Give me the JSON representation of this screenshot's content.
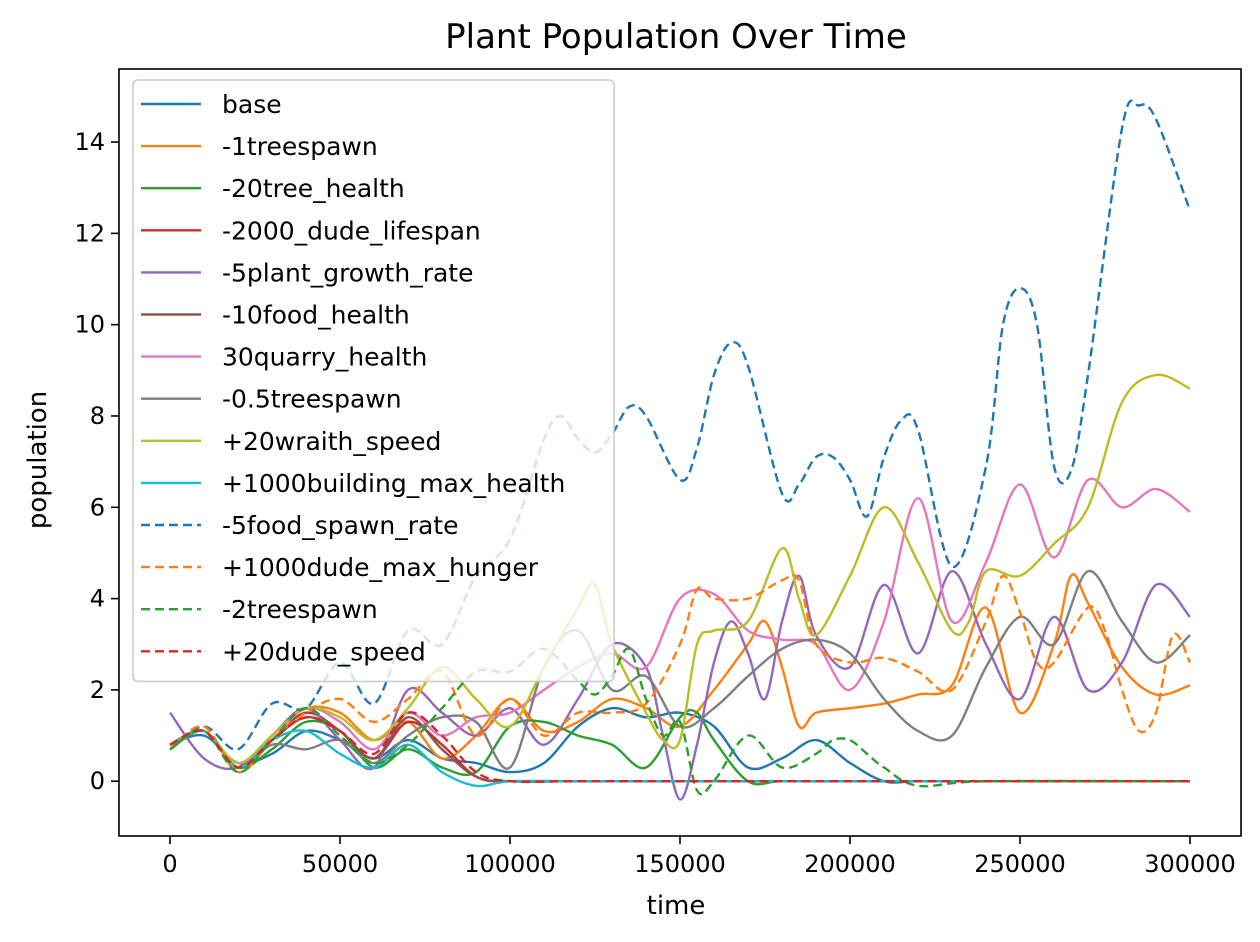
{
  "chart_data": {
    "type": "line",
    "title": "Plant Population Over Time",
    "xlabel": "time",
    "ylabel": "population",
    "xlim": [
      -15000,
      315000
    ],
    "ylim": [
      -1.2,
      15.6
    ],
    "xticks": [
      0,
      50000,
      100000,
      150000,
      200000,
      250000,
      300000
    ],
    "yticks": [
      0,
      2,
      4,
      6,
      8,
      10,
      12,
      14
    ],
    "legend_position": "upper-left",
    "grid": false,
    "series": [
      {
        "name": "base",
        "color": "#1f77b4",
        "style": "solid",
        "x": [
          0,
          10000,
          20000,
          30000,
          40000,
          50000,
          60000,
          70000,
          80000,
          90000,
          100000,
          110000,
          120000,
          130000,
          140000,
          150000,
          160000,
          170000,
          180000,
          190000,
          200000,
          210000,
          220000,
          240000,
          260000,
          280000,
          300000
        ],
        "y": [
          0.8,
          1.0,
          0.4,
          0.6,
          1.1,
          0.9,
          0.5,
          0.9,
          0.5,
          0.4,
          0.2,
          0.4,
          1.2,
          1.6,
          1.4,
          1.5,
          1.2,
          0.3,
          0.5,
          0.9,
          0.4,
          0.0,
          0.0,
          0.0,
          0.0,
          0.0,
          0.0
        ]
      },
      {
        "name": "-1treespawn",
        "color": "#ff7f0e",
        "style": "solid",
        "x": [
          0,
          10000,
          20000,
          30000,
          40000,
          50000,
          60000,
          70000,
          80000,
          90000,
          100000,
          110000,
          120000,
          130000,
          140000,
          150000,
          160000,
          170000,
          175000,
          180000,
          185000,
          190000,
          200000,
          210000,
          220000,
          230000,
          240000,
          250000,
          260000,
          265000,
          270000,
          280000,
          290000,
          300000
        ],
        "y": [
          0.7,
          1.1,
          0.3,
          1.0,
          1.6,
          1.5,
          0.9,
          1.3,
          0.5,
          1.0,
          1.8,
          1.1,
          1.3,
          1.8,
          1.6,
          1.2,
          2.0,
          3.0,
          3.5,
          2.5,
          1.2,
          1.5,
          1.6,
          1.7,
          1.9,
          2.1,
          3.8,
          1.5,
          3.0,
          4.5,
          3.9,
          2.5,
          1.9,
          2.1
        ]
      },
      {
        "name": "-20tree_health",
        "color": "#2ca02c",
        "style": "solid",
        "x": [
          0,
          10000,
          20000,
          30000,
          40000,
          50000,
          60000,
          70000,
          80000,
          90000,
          100000,
          110000,
          120000,
          130000,
          140000,
          150000,
          155000,
          160000,
          170000,
          180000,
          200000,
          240000,
          300000
        ],
        "y": [
          0.7,
          1.1,
          0.3,
          0.7,
          1.3,
          1.1,
          0.3,
          0.7,
          0.3,
          0.2,
          1.2,
          1.3,
          1.0,
          0.8,
          0.3,
          1.4,
          1.5,
          0.9,
          0.0,
          0.0,
          0.0,
          0.0,
          0.0
        ]
      },
      {
        "name": "-2000_dude_lifespan",
        "color": "#d62728",
        "style": "solid",
        "x": [
          0,
          10000,
          20000,
          30000,
          40000,
          50000,
          60000,
          70000,
          80000,
          90000,
          100000,
          120000,
          160000,
          200000,
          250000,
          300000
        ],
        "y": [
          0.8,
          1.1,
          0.3,
          0.9,
          1.5,
          1.1,
          0.5,
          1.3,
          0.8,
          0.1,
          0.0,
          0.0,
          0.0,
          0.0,
          0.0,
          0.0
        ]
      },
      {
        "name": "-5plant_growth_rate",
        "color": "#9467bd",
        "style": "solid",
        "x": [
          0,
          10000,
          20000,
          30000,
          40000,
          50000,
          60000,
          70000,
          80000,
          90000,
          100000,
          110000,
          120000,
          130000,
          140000,
          145000,
          150000,
          155000,
          160000,
          165000,
          170000,
          175000,
          180000,
          185000,
          190000,
          200000,
          210000,
          220000,
          230000,
          240000,
          250000,
          260000,
          270000,
          280000,
          290000,
          300000
        ],
        "y": [
          1.5,
          0.5,
          0.3,
          1.0,
          1.6,
          0.9,
          0.3,
          2.0,
          1.5,
          1.0,
          1.6,
          0.8,
          1.8,
          3.0,
          2.5,
          1.0,
          -0.4,
          0.8,
          2.6,
          3.5,
          2.8,
          1.8,
          3.5,
          4.5,
          3.2,
          2.5,
          4.3,
          2.8,
          4.6,
          3.0,
          1.8,
          3.6,
          2.0,
          2.6,
          4.3,
          3.6
        ]
      },
      {
        "name": "-10food_health",
        "color": "#8c564b",
        "style": "solid",
        "x": [
          0,
          10000,
          20000,
          30000,
          40000,
          50000,
          60000,
          70000,
          80000,
          90000,
          100000,
          120000,
          160000,
          200000,
          250000,
          300000
        ],
        "y": [
          0.8,
          1.1,
          0.3,
          0.9,
          1.4,
          1.1,
          0.5,
          1.4,
          0.7,
          0.1,
          0.0,
          0.0,
          0.0,
          0.0,
          0.0,
          0.0
        ]
      },
      {
        "name": "30quarry_health",
        "color": "#e377c2",
        "style": "solid",
        "x": [
          0,
          10000,
          20000,
          30000,
          40000,
          50000,
          60000,
          70000,
          80000,
          90000,
          100000,
          110000,
          120000,
          130000,
          140000,
          150000,
          160000,
          170000,
          180000,
          190000,
          200000,
          210000,
          220000,
          230000,
          240000,
          250000,
          260000,
          270000,
          280000,
          290000,
          300000
        ],
        "y": [
          0.8,
          1.1,
          0.3,
          0.9,
          1.6,
          1.3,
          0.7,
          1.5,
          1.0,
          1.4,
          1.5,
          2.0,
          2.5,
          2.8,
          2.5,
          4.0,
          4.1,
          3.3,
          3.1,
          3.0,
          2.0,
          3.5,
          6.2,
          3.5,
          4.8,
          6.5,
          4.9,
          6.6,
          6.0,
          6.4,
          5.9
        ]
      },
      {
        "name": "-0.5treespawn",
        "color": "#7f7f7f",
        "style": "solid",
        "x": [
          0,
          10000,
          20000,
          30000,
          40000,
          50000,
          60000,
          70000,
          80000,
          90000,
          100000,
          110000,
          120000,
          130000,
          140000,
          150000,
          160000,
          170000,
          180000,
          190000,
          200000,
          210000,
          220000,
          230000,
          240000,
          250000,
          260000,
          270000,
          280000,
          290000,
          300000
        ],
        "y": [
          0.8,
          1.1,
          0.3,
          0.8,
          0.7,
          0.9,
          0.4,
          1.0,
          1.4,
          1.3,
          0.3,
          2.5,
          3.3,
          2.0,
          2.3,
          1.2,
          1.6,
          2.3,
          2.9,
          3.1,
          2.8,
          1.8,
          1.1,
          1.0,
          2.5,
          3.6,
          3.0,
          4.6,
          3.5,
          2.6,
          3.2
        ]
      },
      {
        "name": "+20wraith_speed",
        "color": "#bcbd22",
        "style": "solid",
        "x": [
          0,
          10000,
          20000,
          30000,
          40000,
          50000,
          60000,
          70000,
          80000,
          90000,
          100000,
          110000,
          120000,
          125000,
          130000,
          140000,
          145000,
          150000,
          155000,
          160000,
          170000,
          180000,
          185000,
          190000,
          200000,
          210000,
          220000,
          230000,
          235000,
          240000,
          250000,
          260000,
          270000,
          280000,
          290000,
          300000
        ],
        "y": [
          0.8,
          1.1,
          0.4,
          1.0,
          1.6,
          1.4,
          0.9,
          1.6,
          2.5,
          1.8,
          1.2,
          2.5,
          3.8,
          4.3,
          3.0,
          1.5,
          0.9,
          0.9,
          3.0,
          3.3,
          3.5,
          5.1,
          4.0,
          3.2,
          4.5,
          6.0,
          4.8,
          3.3,
          3.5,
          4.6,
          4.5,
          5.2,
          6.0,
          8.3,
          8.9,
          8.6
        ]
      },
      {
        "name": "+1000building_max_health",
        "color": "#17becf",
        "style": "solid",
        "x": [
          0,
          10000,
          20000,
          30000,
          40000,
          50000,
          60000,
          70000,
          80000,
          90000,
          100000,
          120000,
          160000,
          200000,
          250000,
          300000
        ],
        "y": [
          0.8,
          1.1,
          0.3,
          0.9,
          1.1,
          0.6,
          0.3,
          0.8,
          0.2,
          -0.1,
          0.0,
          0.0,
          0.0,
          0.0,
          0.0,
          0.0
        ]
      },
      {
        "name": "-5food_spawn_rate",
        "color": "#1f77b4",
        "style": "dashed",
        "x": [
          0,
          10000,
          20000,
          30000,
          40000,
          50000,
          60000,
          70000,
          80000,
          90000,
          100000,
          110000,
          115000,
          120000,
          125000,
          130000,
          135000,
          140000,
          150000,
          155000,
          160000,
          165000,
          170000,
          180000,
          185000,
          190000,
          195000,
          200000,
          205000,
          210000,
          215000,
          220000,
          230000,
          240000,
          245000,
          250000,
          255000,
          260000,
          265000,
          270000,
          280000,
          285000,
          290000,
          300000
        ],
        "y": [
          0.7,
          1.2,
          0.7,
          1.7,
          1.6,
          2.6,
          1.7,
          3.3,
          3.0,
          4.5,
          5.3,
          7.5,
          8.0,
          7.5,
          7.2,
          7.6,
          8.2,
          8.0,
          6.6,
          7.3,
          8.9,
          9.6,
          9.1,
          6.3,
          6.5,
          7.1,
          7.1,
          6.6,
          5.8,
          7.1,
          7.9,
          7.7,
          4.7,
          6.9,
          10.0,
          10.8,
          10.0,
          6.9,
          6.8,
          8.9,
          14.3,
          14.8,
          14.5,
          12.5
        ]
      },
      {
        "name": "+1000dude_max_hunger",
        "color": "#ff7f0e",
        "style": "dashed",
        "x": [
          0,
          10000,
          20000,
          30000,
          40000,
          50000,
          60000,
          70000,
          80000,
          90000,
          100000,
          110000,
          120000,
          130000,
          140000,
          150000,
          155000,
          160000,
          170000,
          180000,
          185000,
          190000,
          200000,
          210000,
          220000,
          230000,
          240000,
          245000,
          250000,
          255000,
          260000,
          270000,
          275000,
          280000,
          285000,
          290000,
          295000,
          300000
        ],
        "y": [
          0.7,
          1.2,
          0.2,
          0.9,
          1.5,
          1.8,
          1.3,
          1.8,
          2.4,
          1.0,
          1.8,
          1.0,
          1.5,
          1.5,
          1.7,
          3.0,
          4.2,
          4.0,
          4.0,
          4.4,
          4.4,
          3.0,
          2.6,
          2.7,
          2.4,
          2.0,
          3.5,
          4.5,
          3.7,
          2.6,
          2.6,
          3.8,
          3.3,
          2.0,
          1.1,
          1.5,
          3.2,
          2.6
        ]
      },
      {
        "name": "-2treespawn",
        "color": "#2ca02c",
        "style": "dashed",
        "x": [
          0,
          10000,
          20000,
          30000,
          40000,
          50000,
          60000,
          70000,
          80000,
          90000,
          100000,
          110000,
          120000,
          125000,
          130000,
          135000,
          140000,
          145000,
          150000,
          155000,
          160000,
          170000,
          180000,
          190000,
          195000,
          200000,
          205000,
          210000,
          220000,
          240000,
          300000
        ],
        "y": [
          0.7,
          1.1,
          0.2,
          0.9,
          1.6,
          1.0,
          0.4,
          0.8,
          1.6,
          2.4,
          2.4,
          2.9,
          2.2,
          1.9,
          2.3,
          2.9,
          1.8,
          1.0,
          1.3,
          -0.2,
          0.0,
          1.0,
          0.3,
          0.6,
          0.9,
          0.9,
          0.6,
          0.3,
          -0.1,
          0.0,
          0.0
        ]
      },
      {
        "name": "+20dude_speed",
        "color": "#d62728",
        "style": "dashed",
        "x": [
          0,
          10000,
          20000,
          30000,
          40000,
          50000,
          60000,
          70000,
          80000,
          90000,
          100000,
          120000,
          160000,
          200000,
          250000,
          300000
        ],
        "y": [
          0.8,
          1.1,
          0.3,
          0.9,
          1.4,
          1.1,
          0.6,
          1.5,
          1.0,
          0.2,
          0.0,
          0.0,
          0.0,
          0.0,
          0.0,
          0.0
        ]
      }
    ]
  }
}
